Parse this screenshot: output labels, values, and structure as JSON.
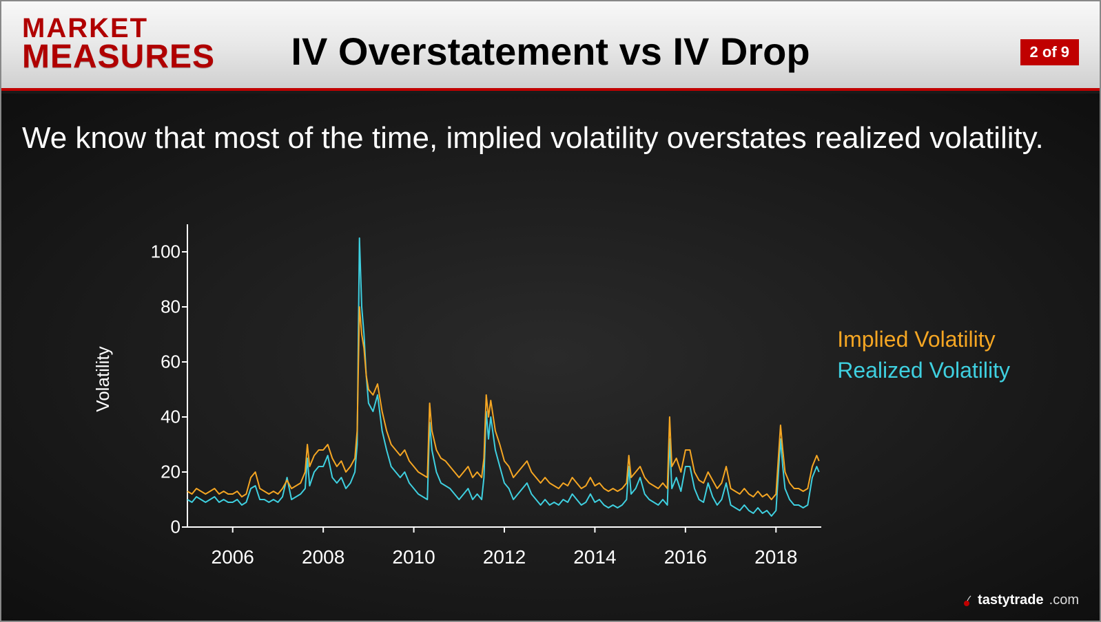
{
  "header": {
    "logo_top": "MARKET",
    "logo_bottom": "MEASURES",
    "title": "IV Overstatement vs IV Drop",
    "page_badge": "2 of 9"
  },
  "body": {
    "text": "We know that most of the time, implied volatility overstates realized volatility."
  },
  "legend": {
    "iv": "Implied Volatility",
    "rv": "Realized Volatility"
  },
  "footer": {
    "brand": "tastytrade",
    "tld": ".com"
  },
  "chart": {
    "type": "line",
    "ylabel": "Volatility",
    "ylim": [
      0,
      110
    ],
    "yticks": [
      0,
      20,
      40,
      60,
      80,
      100
    ],
    "xlim": [
      2005,
      2019
    ],
    "xticks": [
      2006,
      2008,
      2010,
      2012,
      2014,
      2016,
      2018
    ],
    "background_color": "#1f1f1f",
    "axis_color": "#ffffff",
    "tick_fontsize": 26,
    "label_fontsize": 26,
    "line_width": 2,
    "series": [
      {
        "name": "Implied Volatility",
        "color": "#f5a623",
        "x": [
          2005.0,
          2005.1,
          2005.2,
          2005.3,
          2005.4,
          2005.5,
          2005.6,
          2005.7,
          2005.8,
          2005.9,
          2006.0,
          2006.1,
          2006.2,
          2006.3,
          2006.4,
          2006.5,
          2006.6,
          2006.7,
          2006.8,
          2006.9,
          2007.0,
          2007.1,
          2007.2,
          2007.3,
          2007.4,
          2007.5,
          2007.6,
          2007.65,
          2007.7,
          2007.8,
          2007.9,
          2008.0,
          2008.1,
          2008.2,
          2008.3,
          2008.4,
          2008.5,
          2008.6,
          2008.7,
          2008.75,
          2008.8,
          2008.85,
          2008.9,
          2008.95,
          2009.0,
          2009.1,
          2009.2,
          2009.3,
          2009.4,
          2009.5,
          2009.6,
          2009.7,
          2009.8,
          2009.9,
          2010.0,
          2010.1,
          2010.2,
          2010.3,
          2010.35,
          2010.4,
          2010.5,
          2010.6,
          2010.7,
          2010.8,
          2010.9,
          2011.0,
          2011.1,
          2011.2,
          2011.3,
          2011.4,
          2011.5,
          2011.55,
          2011.6,
          2011.65,
          2011.7,
          2011.8,
          2011.9,
          2012.0,
          2012.1,
          2012.2,
          2012.3,
          2012.4,
          2012.5,
          2012.6,
          2012.7,
          2012.8,
          2012.9,
          2013.0,
          2013.1,
          2013.2,
          2013.3,
          2013.4,
          2013.5,
          2013.6,
          2013.7,
          2013.8,
          2013.9,
          2014.0,
          2014.1,
          2014.2,
          2014.3,
          2014.4,
          2014.5,
          2014.6,
          2014.7,
          2014.75,
          2014.8,
          2014.9,
          2015.0,
          2015.1,
          2015.2,
          2015.3,
          2015.4,
          2015.5,
          2015.6,
          2015.65,
          2015.7,
          2015.8,
          2015.9,
          2016.0,
          2016.1,
          2016.2,
          2016.3,
          2016.4,
          2016.5,
          2016.6,
          2016.7,
          2016.8,
          2016.9,
          2017.0,
          2017.1,
          2017.2,
          2017.3,
          2017.4,
          2017.5,
          2017.6,
          2017.7,
          2017.8,
          2017.9,
          2018.0,
          2018.1,
          2018.15,
          2018.2,
          2018.3,
          2018.4,
          2018.5,
          2018.6,
          2018.7,
          2018.8,
          2018.9,
          2018.95
        ],
        "y": [
          13,
          12,
          14,
          13,
          12,
          13,
          14,
          12,
          13,
          12,
          12,
          13,
          11,
          12,
          18,
          20,
          14,
          13,
          12,
          13,
          12,
          14,
          17,
          14,
          15,
          16,
          20,
          30,
          22,
          26,
          28,
          28,
          30,
          25,
          22,
          24,
          20,
          22,
          25,
          35,
          80,
          70,
          65,
          55,
          50,
          48,
          52,
          42,
          35,
          30,
          28,
          26,
          28,
          24,
          22,
          20,
          19,
          18,
          45,
          35,
          28,
          25,
          24,
          22,
          20,
          18,
          20,
          22,
          18,
          20,
          18,
          25,
          48,
          40,
          46,
          35,
          30,
          24,
          22,
          18,
          20,
          22,
          24,
          20,
          18,
          16,
          18,
          16,
          15,
          14,
          16,
          15,
          18,
          16,
          14,
          15,
          18,
          15,
          16,
          14,
          13,
          14,
          13,
          14,
          16,
          26,
          18,
          20,
          22,
          18,
          16,
          15,
          14,
          16,
          14,
          40,
          22,
          25,
          20,
          28,
          28,
          20,
          17,
          16,
          20,
          17,
          14,
          16,
          22,
          14,
          13,
          12,
          14,
          12,
          11,
          13,
          11,
          12,
          10,
          12,
          37,
          28,
          20,
          16,
          14,
          14,
          13,
          14,
          22,
          26,
          24
        ]
      },
      {
        "name": "Realized Volatility",
        "color": "#3fd0e0",
        "x": [
          2005.0,
          2005.1,
          2005.2,
          2005.3,
          2005.4,
          2005.5,
          2005.6,
          2005.7,
          2005.8,
          2005.9,
          2006.0,
          2006.1,
          2006.2,
          2006.3,
          2006.4,
          2006.5,
          2006.6,
          2006.7,
          2006.8,
          2006.9,
          2007.0,
          2007.1,
          2007.2,
          2007.3,
          2007.4,
          2007.5,
          2007.6,
          2007.65,
          2007.7,
          2007.8,
          2007.9,
          2008.0,
          2008.1,
          2008.2,
          2008.3,
          2008.4,
          2008.5,
          2008.6,
          2008.7,
          2008.75,
          2008.8,
          2008.85,
          2008.9,
          2008.95,
          2009.0,
          2009.1,
          2009.2,
          2009.3,
          2009.4,
          2009.5,
          2009.6,
          2009.7,
          2009.8,
          2009.9,
          2010.0,
          2010.1,
          2010.2,
          2010.3,
          2010.35,
          2010.4,
          2010.5,
          2010.6,
          2010.7,
          2010.8,
          2010.9,
          2011.0,
          2011.1,
          2011.2,
          2011.3,
          2011.4,
          2011.5,
          2011.55,
          2011.6,
          2011.65,
          2011.7,
          2011.8,
          2011.9,
          2012.0,
          2012.1,
          2012.2,
          2012.3,
          2012.4,
          2012.5,
          2012.6,
          2012.7,
          2012.8,
          2012.9,
          2013.0,
          2013.1,
          2013.2,
          2013.3,
          2013.4,
          2013.5,
          2013.6,
          2013.7,
          2013.8,
          2013.9,
          2014.0,
          2014.1,
          2014.2,
          2014.3,
          2014.4,
          2014.5,
          2014.6,
          2014.7,
          2014.75,
          2014.8,
          2014.9,
          2015.0,
          2015.1,
          2015.2,
          2015.3,
          2015.4,
          2015.5,
          2015.6,
          2015.65,
          2015.7,
          2015.8,
          2015.9,
          2016.0,
          2016.1,
          2016.2,
          2016.3,
          2016.4,
          2016.5,
          2016.6,
          2016.7,
          2016.8,
          2016.9,
          2017.0,
          2017.1,
          2017.2,
          2017.3,
          2017.4,
          2017.5,
          2017.6,
          2017.7,
          2017.8,
          2017.9,
          2018.0,
          2018.1,
          2018.15,
          2018.2,
          2018.3,
          2018.4,
          2018.5,
          2018.6,
          2018.7,
          2018.8,
          2018.9,
          2018.95
        ],
        "y": [
          10,
          9,
          11,
          10,
          9,
          10,
          11,
          9,
          10,
          9,
          9,
          10,
          8,
          9,
          14,
          15,
          10,
          10,
          9,
          10,
          9,
          11,
          18,
          10,
          11,
          12,
          14,
          25,
          15,
          20,
          22,
          22,
          26,
          18,
          16,
          18,
          14,
          16,
          20,
          30,
          105,
          80,
          70,
          55,
          45,
          42,
          48,
          35,
          28,
          22,
          20,
          18,
          20,
          16,
          14,
          12,
          11,
          10,
          38,
          28,
          20,
          16,
          15,
          14,
          12,
          10,
          12,
          14,
          10,
          12,
          10,
          18,
          42,
          32,
          40,
          28,
          22,
          16,
          14,
          10,
          12,
          14,
          16,
          12,
          10,
          8,
          10,
          8,
          9,
          8,
          10,
          9,
          12,
          10,
          8,
          9,
          12,
          9,
          10,
          8,
          7,
          8,
          7,
          8,
          10,
          22,
          12,
          14,
          18,
          12,
          10,
          9,
          8,
          10,
          8,
          32,
          14,
          18,
          13,
          22,
          22,
          14,
          10,
          9,
          16,
          11,
          8,
          10,
          16,
          8,
          7,
          6,
          8,
          6,
          5,
          7,
          5,
          6,
          4,
          6,
          32,
          22,
          14,
          10,
          8,
          8,
          7,
          8,
          18,
          22,
          20
        ]
      }
    ]
  }
}
